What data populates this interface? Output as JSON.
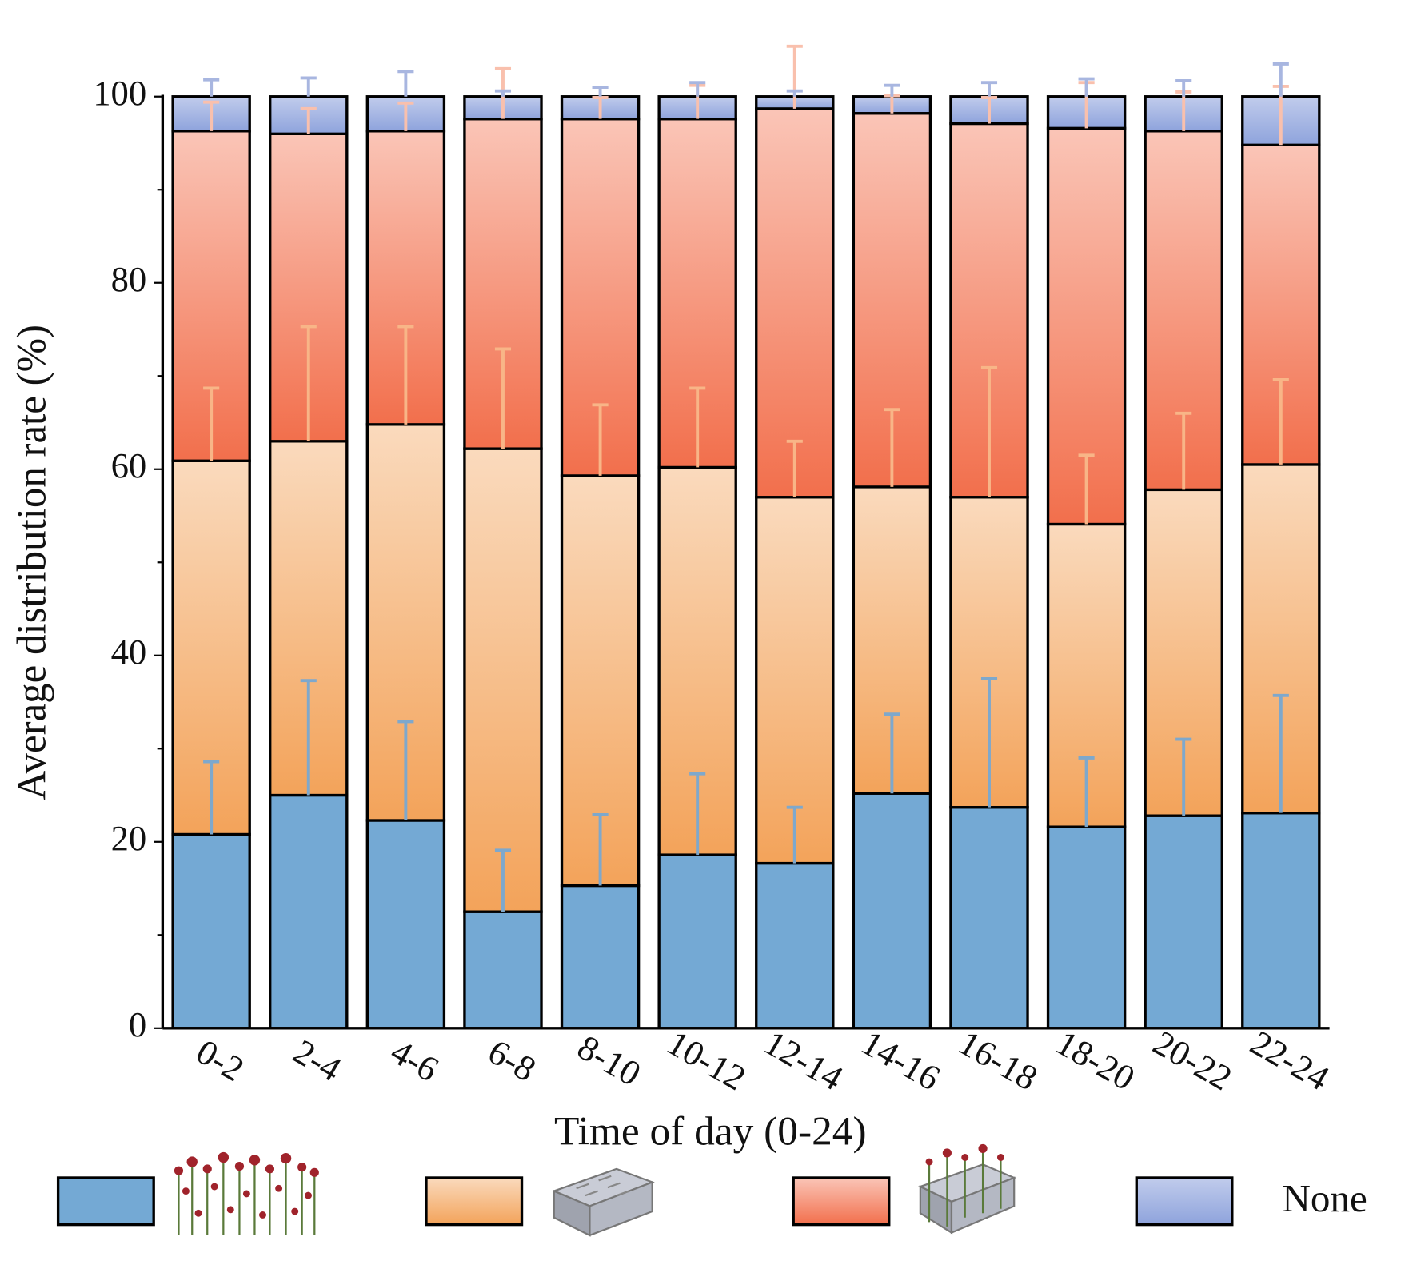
{
  "chart_data": {
    "type": "stacked-bar",
    "x_label": "Time of day (0-24)",
    "y_label": "Average distribution rate (%)",
    "categories": [
      "0-2",
      "2-4",
      "4-6",
      "6-8",
      "8-10",
      "10-12",
      "12-14",
      "14-16",
      "16-18",
      "18-20",
      "20-22",
      "22-24"
    ],
    "series": [
      {
        "color": "#74a9d4",
        "error_color": "#7ea8cc",
        "values": [
          20.8,
          25.0,
          22.3,
          12.5,
          15.3,
          18.6,
          17.7,
          25.2,
          23.7,
          21.6,
          22.8,
          23.1
        ],
        "errors": [
          7.8,
          12.3,
          10.6,
          6.6,
          7.6,
          8.7,
          6.0,
          8.5,
          13.8,
          7.4,
          8.2,
          12.6
        ]
      },
      {
        "color": "#f3a35a",
        "error_color": "#f8b587",
        "values": [
          40.1,
          38.0,
          42.5,
          49.7,
          44.0,
          41.6,
          39.3,
          32.9,
          33.3,
          32.5,
          35.0,
          37.4
        ],
        "errors": [
          7.8,
          12.3,
          10.5,
          10.7,
          7.6,
          8.5,
          6.0,
          8.3,
          13.9,
          7.4,
          8.2,
          9.1
        ]
      },
      {
        "color": "#f26f4c",
        "error_color": "#f9c0ad",
        "values": [
          35.4,
          33.0,
          31.5,
          35.4,
          38.3,
          37.4,
          41.7,
          40.1,
          40.1,
          42.5,
          38.5,
          34.3
        ],
        "errors": [
          3.1,
          2.7,
          3.0,
          5.4,
          2.3,
          3.6,
          6.7,
          1.9,
          2.8,
          4.9,
          4.2,
          6.3
        ]
      },
      {
        "name": "None",
        "color": "#8ea3dc",
        "error_color": "#a8b6e0",
        "values": [
          3.7,
          4.0,
          3.7,
          2.4,
          2.4,
          2.4,
          1.3,
          1.8,
          2.9,
          3.4,
          3.7,
          5.2
        ],
        "errors": [
          1.8,
          2.0,
          2.7,
          0.6,
          1.0,
          1.5,
          0.6,
          1.2,
          1.5,
          1.9,
          1.7,
          3.5
        ]
      }
    ],
    "ylim": [
      0,
      100
    ],
    "yticks": [
      0,
      20,
      40,
      60,
      80,
      100
    ],
    "minor_yticks": [
      10,
      30,
      50,
      70,
      90
    ],
    "grid": false,
    "legend": "bottom"
  }
}
